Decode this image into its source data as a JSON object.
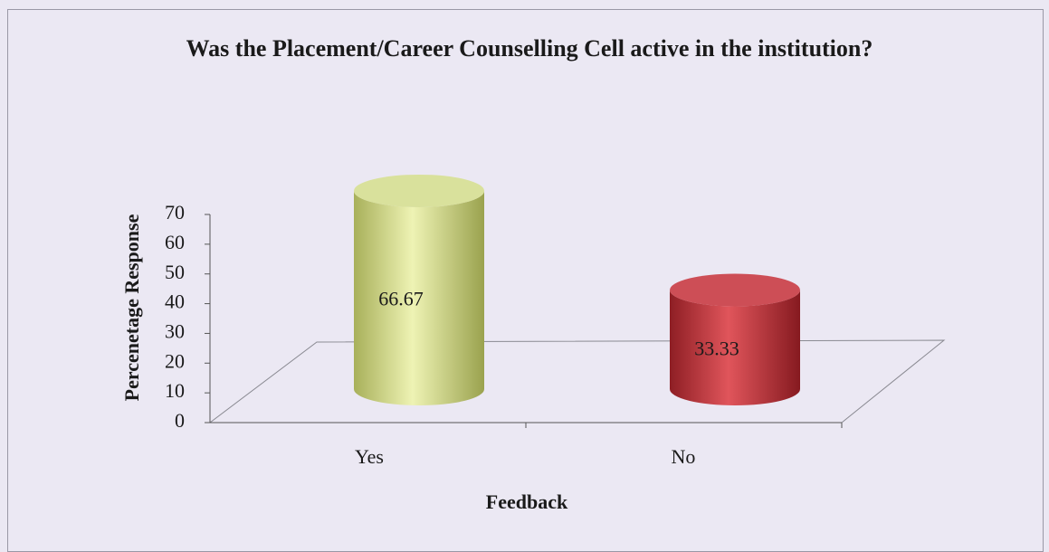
{
  "chart_data": {
    "type": "bar3d",
    "title": "Was the Placement/Career Counselling Cell active in the institution?",
    "xlabel": "Feedback",
    "ylabel": "Percenetage Response",
    "categories": [
      "Yes",
      "No"
    ],
    "values": [
      66.67,
      33.33
    ],
    "colors": [
      "#d6df8c",
      "#c8323a"
    ],
    "ylim": [
      0,
      70
    ],
    "yticks": [
      0,
      10,
      20,
      30,
      40,
      50,
      60,
      70
    ]
  }
}
